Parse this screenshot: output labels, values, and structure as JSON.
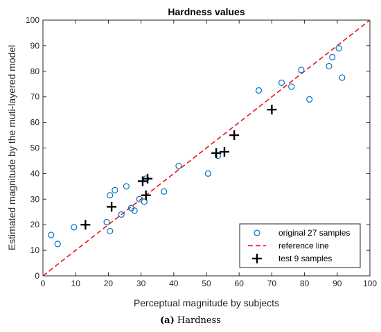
{
  "chart_data": {
    "type": "scatter",
    "title": "Hardness values",
    "xlabel": "Perceptual magnitude by subjects",
    "ylabel": "Estimated magnitude by the muti-layered model",
    "xlim": [
      0,
      100
    ],
    "ylim": [
      0,
      100
    ],
    "xticks": [
      0,
      10,
      20,
      30,
      40,
      50,
      60,
      70,
      80,
      90,
      100
    ],
    "yticks": [
      0,
      10,
      20,
      30,
      40,
      50,
      60,
      70,
      80,
      90,
      100
    ],
    "grid": false,
    "legend_position": "bottom-right",
    "series": [
      {
        "name": "original 27 samples",
        "marker": "circle",
        "color": "#0072BD",
        "points": [
          [
            2.5,
            16.0
          ],
          [
            4.5,
            12.5
          ],
          [
            9.5,
            19.0
          ],
          [
            19.5,
            21.0
          ],
          [
            20.5,
            17.5
          ],
          [
            20.5,
            31.5
          ],
          [
            22.0,
            33.5
          ],
          [
            24.0,
            24.0
          ],
          [
            25.5,
            35.0
          ],
          [
            27.0,
            26.5
          ],
          [
            28.0,
            25.5
          ],
          [
            29.5,
            30.0
          ],
          [
            31.0,
            29.0
          ],
          [
            31.5,
            38.0
          ],
          [
            37.0,
            33.0
          ],
          [
            41.5,
            43.0
          ],
          [
            50.5,
            40.0
          ],
          [
            53.5,
            47.0
          ],
          [
            66.0,
            72.5
          ],
          [
            73.0,
            75.5
          ],
          [
            76.0,
            74.0
          ],
          [
            79.0,
            80.5
          ],
          [
            81.5,
            69.0
          ],
          [
            87.5,
            82.0
          ],
          [
            88.5,
            85.5
          ],
          [
            90.5,
            89.0
          ],
          [
            91.5,
            77.5
          ]
        ]
      },
      {
        "name": "reference line",
        "marker": "dashed-line",
        "color": "#E8141B",
        "points": [
          [
            0,
            0
          ],
          [
            100,
            100
          ]
        ]
      },
      {
        "name": "test 9 samples",
        "marker": "plus",
        "color": "#000000",
        "points": [
          [
            13.0,
            20.0
          ],
          [
            21.0,
            27.0
          ],
          [
            30.5,
            37.0
          ],
          [
            31.5,
            31.5
          ],
          [
            32.0,
            38.0
          ],
          [
            53.0,
            48.0
          ],
          [
            55.5,
            48.5
          ],
          [
            58.5,
            55.0
          ],
          [
            70.0,
            65.0
          ]
        ]
      }
    ]
  },
  "caption": {
    "label": "(a)",
    "text": "Hardness"
  }
}
